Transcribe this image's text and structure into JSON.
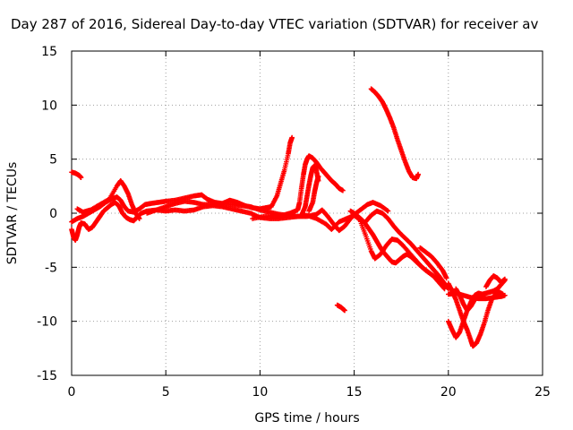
{
  "chart_data": {
    "type": "scatter",
    "title": "Day 287 of 2016, Sidereal Day-to-day VTEC variation (SDTVAR) for receiver av",
    "xlabel": "GPS time / hours",
    "ylabel": "SDTVAR / TECUs",
    "xlim": [
      0,
      25
    ],
    "ylim": [
      -15,
      15
    ],
    "xticks": [
      "0",
      "5",
      "10",
      "15",
      "20",
      "25"
    ],
    "yticks": [
      "15",
      "10",
      "5",
      "0",
      "-5",
      "-10",
      "-15"
    ],
    "grid": true,
    "marker": "plus",
    "color": "#ff0000",
    "series": [
      {
        "points": [
          [
            0.0,
            3.8
          ],
          [
            0.2,
            3.7
          ],
          [
            0.4,
            3.5
          ],
          [
            0.5,
            3.3
          ]
        ]
      },
      {
        "points": [
          [
            0.0,
            -1.5
          ],
          [
            0.1,
            -2.2
          ],
          [
            0.2,
            -2.5
          ],
          [
            0.3,
            -2.0
          ],
          [
            0.4,
            -1.3
          ],
          [
            0.5,
            -0.9
          ],
          [
            0.7,
            -1.0
          ],
          [
            0.9,
            -1.5
          ],
          [
            1.1,
            -1.3
          ],
          [
            1.3,
            -0.8
          ],
          [
            1.5,
            -0.3
          ],
          [
            1.7,
            0.2
          ],
          [
            1.9,
            0.5
          ],
          [
            2.1,
            0.8
          ],
          [
            2.3,
            1.0
          ],
          [
            2.5,
            0.7
          ],
          [
            2.7,
            0.0
          ],
          [
            2.9,
            -0.4
          ],
          [
            3.1,
            -0.6
          ],
          [
            3.3,
            -0.7
          ],
          [
            3.5,
            -0.3
          ],
          [
            3.7,
            0.0
          ],
          [
            4.0,
            0.2
          ],
          [
            4.5,
            0.3
          ],
          [
            5.0,
            0.2
          ],
          [
            5.5,
            0.3
          ],
          [
            6.0,
            0.2
          ],
          [
            6.5,
            0.3
          ],
          [
            7.0,
            0.6
          ],
          [
            7.5,
            0.7
          ],
          [
            8.0,
            0.6
          ],
          [
            8.5,
            0.4
          ],
          [
            9.0,
            0.2
          ],
          [
            9.5,
            0.0
          ],
          [
            10.0,
            -0.4
          ],
          [
            10.5,
            -0.5
          ],
          [
            11.0,
            -0.5
          ],
          [
            11.5,
            -0.4
          ],
          [
            12.0,
            -0.3
          ],
          [
            12.5,
            -0.2
          ],
          [
            13.0,
            -0.5
          ],
          [
            13.5,
            -1.0
          ],
          [
            13.8,
            -1.5
          ],
          [
            14.2,
            -0.8
          ],
          [
            14.6,
            -0.5
          ],
          [
            15.0,
            -0.2
          ],
          [
            15.3,
            -0.6
          ],
          [
            15.6,
            -2.0
          ],
          [
            15.9,
            -3.5
          ],
          [
            16.1,
            -4.2
          ],
          [
            16.4,
            -3.8
          ],
          [
            16.7,
            -3.0
          ],
          [
            17.0,
            -2.4
          ],
          [
            17.3,
            -2.5
          ],
          [
            17.6,
            -3.0
          ],
          [
            18.0,
            -3.8
          ],
          [
            18.4,
            -4.6
          ],
          [
            18.8,
            -5.3
          ],
          [
            19.2,
            -5.8
          ],
          [
            19.6,
            -6.2
          ],
          [
            20.0,
            -7.0
          ]
        ]
      },
      {
        "points": [
          [
            0.0,
            -0.8
          ],
          [
            0.3,
            -0.5
          ],
          [
            0.6,
            -0.3
          ],
          [
            0.9,
            0.0
          ],
          [
            1.2,
            0.3
          ],
          [
            1.5,
            0.6
          ],
          [
            1.8,
            1.0
          ],
          [
            2.1,
            1.3
          ],
          [
            2.4,
            1.5
          ],
          [
            2.6,
            1.2
          ],
          [
            2.8,
            0.6
          ],
          [
            3.0,
            0.2
          ],
          [
            3.3,
            0.1
          ],
          [
            3.6,
            0.4
          ],
          [
            3.9,
            0.8
          ],
          [
            4.2,
            0.9
          ],
          [
            4.6,
            1.0
          ],
          [
            5.0,
            1.1
          ],
          [
            5.5,
            1.2
          ],
          [
            6.0,
            1.4
          ],
          [
            6.5,
            1.6
          ],
          [
            6.9,
            1.7
          ],
          [
            7.2,
            1.3
          ],
          [
            7.6,
            1.0
          ],
          [
            8.0,
            0.9
          ],
          [
            8.5,
            0.8
          ],
          [
            9.0,
            0.7
          ],
          [
            9.5,
            0.6
          ],
          [
            10.0,
            0.3
          ],
          [
            10.5,
            0.1
          ],
          [
            11.0,
            -0.1
          ],
          [
            11.5,
            -0.2
          ],
          [
            12.0,
            -0.3
          ],
          [
            12.5,
            -0.3
          ],
          [
            13.0,
            -0.1
          ],
          [
            13.3,
            0.3
          ],
          [
            13.6,
            -0.3
          ],
          [
            13.9,
            -1.0
          ],
          [
            14.2,
            -1.6
          ],
          [
            14.5,
            -1.2
          ],
          [
            14.8,
            -0.5
          ],
          [
            15.1,
            0.0
          ],
          [
            15.4,
            0.4
          ],
          [
            15.7,
            0.8
          ],
          [
            16.0,
            1.0
          ],
          [
            16.4,
            0.7
          ],
          [
            16.8,
            0.2
          ]
        ]
      },
      {
        "points": [
          [
            0.3,
            0.4
          ],
          [
            0.6,
            0.1
          ],
          [
            1.0,
            0.3
          ],
          [
            1.5,
            0.8
          ],
          [
            2.0,
            1.3
          ],
          [
            2.4,
            2.5
          ],
          [
            2.6,
            3.0
          ],
          [
            2.8,
            2.5
          ],
          [
            3.0,
            1.8
          ],
          [
            3.2,
            0.8
          ],
          [
            3.4,
            0.0
          ],
          [
            3.6,
            -0.5
          ]
        ]
      },
      {
        "points": [
          [
            4.0,
            0.0
          ],
          [
            4.5,
            0.3
          ],
          [
            5.0,
            0.6
          ],
          [
            5.5,
            0.9
          ],
          [
            6.0,
            1.1
          ],
          [
            6.5,
            1.0
          ],
          [
            7.0,
            0.8
          ],
          [
            7.5,
            0.8
          ],
          [
            8.0,
            0.9
          ],
          [
            8.4,
            1.2
          ],
          [
            8.8,
            1.0
          ],
          [
            9.2,
            0.7
          ],
          [
            9.6,
            0.5
          ],
          [
            10.0,
            0.4
          ],
          [
            10.3,
            0.5
          ],
          [
            10.6,
            0.6
          ],
          [
            10.9,
            1.6
          ],
          [
            11.1,
            2.8
          ],
          [
            11.3,
            4.0
          ],
          [
            11.5,
            5.5
          ],
          [
            11.6,
            6.5
          ],
          [
            11.7,
            7.0
          ]
        ]
      },
      {
        "points": [
          [
            9.6,
            -0.5
          ],
          [
            10.2,
            -0.3
          ],
          [
            10.8,
            -0.2
          ],
          [
            11.2,
            -0.2
          ],
          [
            11.6,
            0.0
          ],
          [
            12.0,
            0.3
          ],
          [
            12.1,
            1.0
          ],
          [
            12.2,
            2.3
          ],
          [
            12.3,
            3.5
          ],
          [
            12.4,
            4.5
          ],
          [
            12.5,
            5.0
          ],
          [
            12.6,
            5.3
          ],
          [
            12.8,
            5.1
          ],
          [
            13.0,
            4.7
          ],
          [
            13.2,
            4.2
          ],
          [
            13.4,
            3.8
          ],
          [
            13.6,
            3.4
          ],
          [
            13.8,
            3.0
          ],
          [
            14.0,
            2.7
          ],
          [
            14.2,
            2.3
          ],
          [
            14.4,
            2.1
          ]
        ]
      },
      {
        "points": [
          [
            12.2,
            -0.2
          ],
          [
            12.4,
            0.6
          ],
          [
            12.5,
            1.6
          ],
          [
            12.6,
            2.6
          ],
          [
            12.7,
            3.5
          ],
          [
            12.8,
            4.2
          ],
          [
            12.9,
            4.4
          ],
          [
            13.0,
            3.9
          ],
          [
            13.1,
            3.0
          ]
        ]
      },
      {
        "points": [
          [
            12.6,
            0.2
          ],
          [
            12.8,
            1.0
          ],
          [
            12.9,
            2.0
          ],
          [
            13.0,
            2.8
          ],
          [
            13.1,
            3.4
          ]
        ]
      },
      {
        "points": [
          [
            14.1,
            -8.5
          ],
          [
            14.3,
            -8.7
          ],
          [
            14.5,
            -9.0
          ]
        ]
      },
      {
        "points": [
          [
            14.8,
            0.2
          ],
          [
            15.0,
            0.0
          ],
          [
            15.2,
            -0.3
          ],
          [
            15.4,
            -0.6
          ],
          [
            15.6,
            -1.0
          ],
          [
            15.8,
            -1.5
          ],
          [
            16.0,
            -2.0
          ],
          [
            16.2,
            -2.6
          ],
          [
            16.4,
            -3.2
          ],
          [
            16.6,
            -3.7
          ],
          [
            16.8,
            -4.1
          ],
          [
            17.0,
            -4.5
          ],
          [
            17.2,
            -4.6
          ],
          [
            17.4,
            -4.3
          ],
          [
            17.6,
            -4.0
          ],
          [
            17.8,
            -3.8
          ],
          [
            18.0,
            -4.0
          ],
          [
            18.3,
            -4.5
          ],
          [
            18.6,
            -5.0
          ],
          [
            18.9,
            -5.4
          ],
          [
            19.2,
            -5.8
          ],
          [
            19.5,
            -6.4
          ],
          [
            19.8,
            -7.0
          ]
        ]
      },
      {
        "points": [
          [
            15.6,
            -0.8
          ],
          [
            15.9,
            -0.2
          ],
          [
            16.2,
            0.2
          ],
          [
            16.5,
            0.0
          ],
          [
            16.8,
            -0.5
          ],
          [
            17.1,
            -1.2
          ],
          [
            17.4,
            -1.8
          ],
          [
            17.7,
            -2.3
          ],
          [
            18.0,
            -2.8
          ],
          [
            18.3,
            -3.4
          ],
          [
            18.6,
            -4.0
          ],
          [
            18.9,
            -4.6
          ],
          [
            19.2,
            -5.2
          ],
          [
            19.5,
            -5.8
          ],
          [
            19.8,
            -6.5
          ]
        ]
      },
      {
        "points": [
          [
            15.9,
            11.5
          ],
          [
            16.1,
            11.2
          ],
          [
            16.3,
            10.8
          ],
          [
            16.5,
            10.3
          ],
          [
            16.7,
            9.6
          ],
          [
            16.9,
            8.8
          ],
          [
            17.1,
            7.9
          ],
          [
            17.3,
            6.8
          ],
          [
            17.5,
            5.8
          ],
          [
            17.7,
            4.8
          ],
          [
            17.9,
            3.9
          ],
          [
            18.1,
            3.3
          ],
          [
            18.3,
            3.2
          ],
          [
            18.4,
            3.6
          ]
        ]
      },
      {
        "points": [
          [
            18.5,
            -3.2
          ],
          [
            18.8,
            -3.6
          ],
          [
            19.1,
            -4.0
          ],
          [
            19.4,
            -4.6
          ],
          [
            19.7,
            -5.3
          ],
          [
            19.9,
            -6.0
          ]
        ]
      },
      {
        "points": [
          [
            20.0,
            -6.5
          ],
          [
            20.2,
            -7.2
          ],
          [
            20.4,
            -8.0
          ],
          [
            20.6,
            -9.0
          ],
          [
            20.8,
            -10.0
          ],
          [
            21.0,
            -10.8
          ],
          [
            21.2,
            -11.8
          ],
          [
            21.3,
            -12.3
          ],
          [
            21.5,
            -12.0
          ],
          [
            21.7,
            -11.2
          ],
          [
            21.9,
            -10.2
          ],
          [
            22.1,
            -9.0
          ],
          [
            22.3,
            -8.0
          ],
          [
            22.5,
            -7.5
          ],
          [
            22.7,
            -7.3
          ],
          [
            22.9,
            -7.5
          ]
        ]
      },
      {
        "points": [
          [
            20.0,
            -10.0
          ],
          [
            20.2,
            -10.8
          ],
          [
            20.4,
            -11.5
          ],
          [
            20.6,
            -11.0
          ],
          [
            20.8,
            -10.0
          ],
          [
            21.0,
            -9.0
          ],
          [
            21.2,
            -8.2
          ],
          [
            21.4,
            -7.6
          ],
          [
            21.6,
            -7.4
          ],
          [
            21.8,
            -7.5
          ],
          [
            22.0,
            -7.4
          ],
          [
            22.2,
            -7.3
          ],
          [
            22.4,
            -7.2
          ],
          [
            22.6,
            -7.0
          ],
          [
            22.8,
            -6.6
          ],
          [
            23.0,
            -6.2
          ]
        ]
      },
      {
        "points": [
          [
            20.0,
            -7.5
          ],
          [
            20.4,
            -7.4
          ],
          [
            20.8,
            -7.6
          ],
          [
            21.2,
            -7.8
          ],
          [
            21.6,
            -7.9
          ],
          [
            22.0,
            -7.9
          ],
          [
            22.4,
            -7.8
          ],
          [
            22.8,
            -7.7
          ],
          [
            23.0,
            -7.6
          ]
        ]
      },
      {
        "points": [
          [
            20.4,
            -7.0
          ],
          [
            20.6,
            -7.6
          ],
          [
            20.8,
            -8.4
          ],
          [
            21.0,
            -9.0
          ],
          [
            21.2,
            -8.6
          ],
          [
            21.4,
            -8.0
          ],
          [
            21.6,
            -7.6
          ]
        ]
      },
      {
        "points": [
          [
            22.0,
            -6.8
          ],
          [
            22.2,
            -6.2
          ],
          [
            22.4,
            -5.8
          ],
          [
            22.6,
            -6.0
          ],
          [
            22.8,
            -6.4
          ],
          [
            23.0,
            -6.1
          ]
        ]
      }
    ]
  }
}
